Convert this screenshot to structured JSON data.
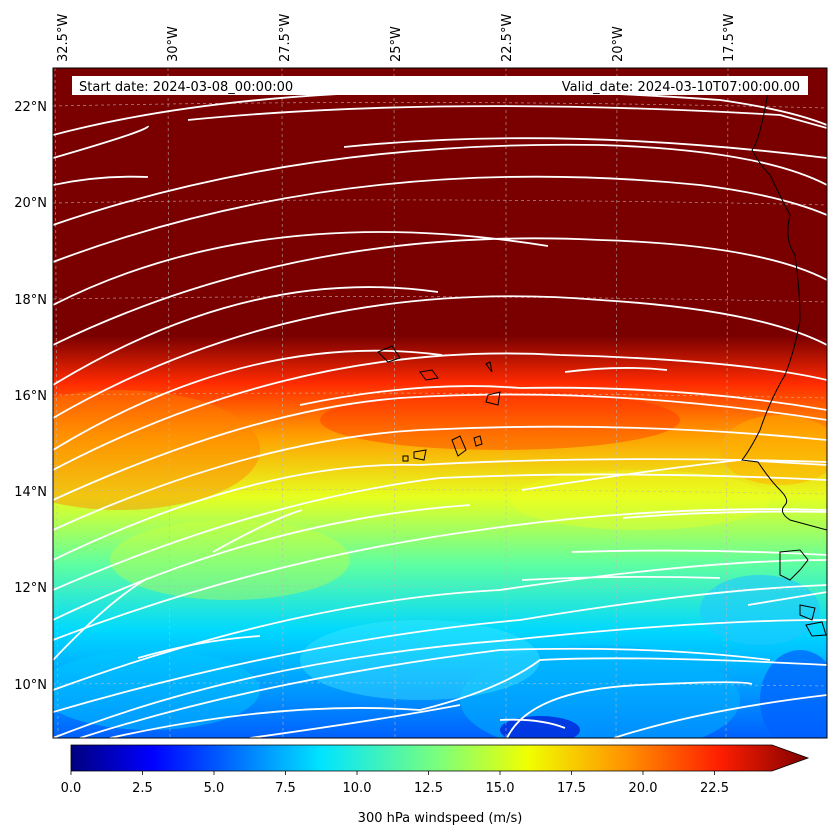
{
  "header": {
    "start_date": "Start date: 2024-03-08_00:00:00",
    "valid_date": "Valid_date: 2024-03-10T07:00:00.00"
  },
  "axes": {
    "longitude_labels": [
      "32.5°W",
      "30°W",
      "27.5°W",
      "25°W",
      "22.5°W",
      "20°W",
      "17.5°W"
    ],
    "latitude_labels": [
      "22°N",
      "20°N",
      "18°N",
      "16°N",
      "14°N",
      "12°N",
      "10°N"
    ]
  },
  "colorbar": {
    "label": "300 hPa windspeed (m/s)",
    "ticks": [
      "0.0",
      "2.5",
      "5.0",
      "7.5",
      "10.0",
      "12.5",
      "15.0",
      "17.5",
      "20.0",
      "22.5"
    ],
    "extend": "max",
    "colormap": "jet"
  },
  "colors": {
    "max_wind": "#7a0000",
    "streamline": "#ffffff",
    "coastline": "#000000",
    "gridline": "#bbbbbb"
  }
}
